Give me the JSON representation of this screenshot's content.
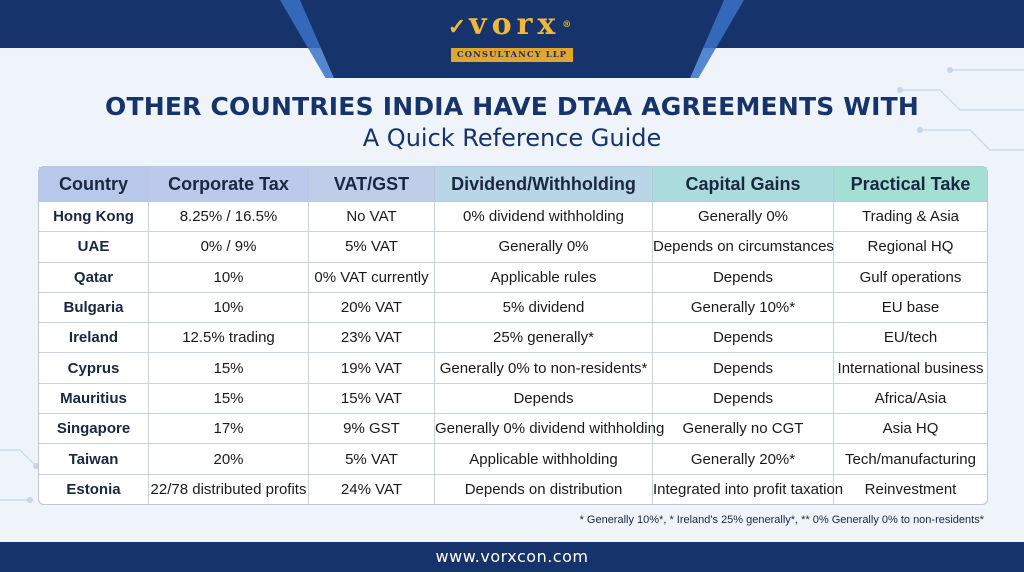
{
  "logo": {
    "word": "vorx",
    "registered": "®",
    "subtitle": "CONSULTANCY LLP"
  },
  "title": "OTHER COUNTRIES INDIA HAVE DTAA AGREEMENTS WITH",
  "subtitle": "A Quick Reference Guide",
  "table": {
    "headers": [
      "Country",
      "Corporate Tax",
      "VAT/GST",
      "Dividend/Withholding",
      "Capital Gains",
      "Practical Take"
    ],
    "header_colors": [
      "#b8c8ea",
      "#bcc9ea",
      "#c0cde9",
      "#b9d6e6",
      "#abdbdc",
      "#a3dfd3"
    ],
    "rows": [
      [
        "Hong Kong",
        "8.25% / 16.5%",
        "No VAT",
        "0% dividend withholding",
        "Generally 0%",
        "Trading & Asia"
      ],
      [
        "UAE",
        "0% / 9%",
        "5% VAT",
        "Generally 0%",
        "Depends on circumstances",
        "Regional HQ"
      ],
      [
        "Qatar",
        "10%",
        "0% VAT currently",
        "Applicable rules",
        "Depends",
        "Gulf operations"
      ],
      [
        "Bulgaria",
        "10%",
        "20% VAT",
        "5% dividend",
        "Generally 10%*",
        "EU base"
      ],
      [
        "Ireland",
        "12.5% trading",
        "23% VAT",
        "25% generally*",
        "Depends",
        "EU/tech"
      ],
      [
        "Cyprus",
        "15%",
        "19% VAT",
        "Generally 0% to non-residents*",
        "Depends",
        "International business"
      ],
      [
        "Mauritius",
        "15%",
        "15% VAT",
        "Depends",
        "Depends",
        "Africa/Asia"
      ],
      [
        "Singapore",
        "17%",
        "9% GST",
        "Generally 0% dividend withholding",
        "Generally no CGT",
        "Asia HQ"
      ],
      [
        "Taiwan",
        "20%",
        "5% VAT",
        "Applicable withholding",
        "Generally 20%*",
        "Tech/manufacturing"
      ],
      [
        "Estonia",
        "22/78 distributed profits",
        "24% VAT",
        "Depends on distribution",
        "Integrated into profit taxation",
        "Reinvestment"
      ]
    ]
  },
  "footnote": "* Generally 10%*, * Ireland's 25% generally*, ** 0% Generally 0% to non-residents*",
  "footer": {
    "website": "www.vorxcon.com"
  },
  "colors": {
    "navy": "#17336b",
    "accent_blue": "#3a73c8",
    "gold": "#f0b93a",
    "background": "#eef4f9"
  }
}
